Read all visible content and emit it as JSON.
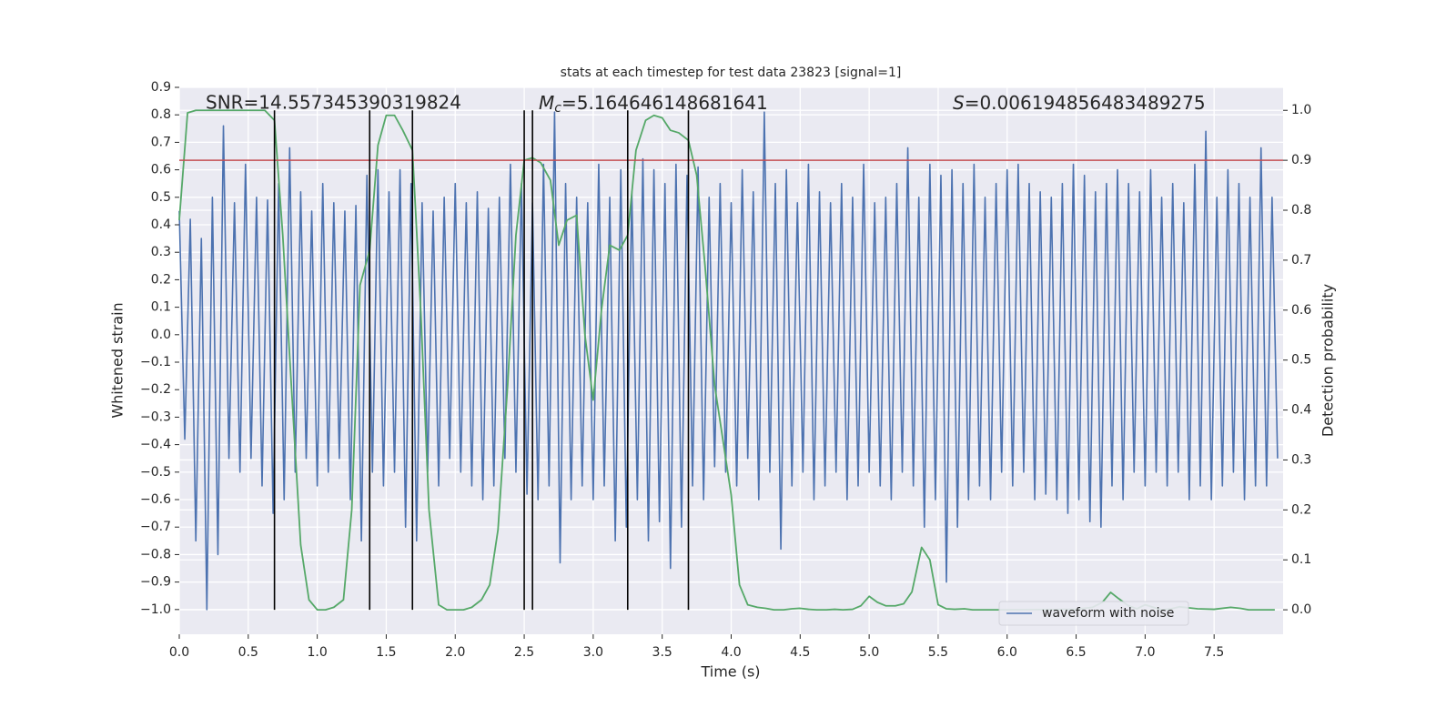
{
  "chart_data": {
    "type": "line",
    "title": "stats at each timestep for test data 23823 [signal=1]",
    "xlabel": "Time (s)",
    "ylabel": "Whitened strain",
    "y2label": "Detection probability",
    "annotations": [
      {
        "text": "SNR=14.557345390319824"
      },
      {
        "symbol": "M",
        "subscript": "c",
        "text": "=5.164646148681641"
      },
      {
        "symbol": "S",
        "text": "=0.006194856483489275"
      }
    ],
    "xlim": [
      0,
      8
    ],
    "ylim": [
      -1.09,
      0.9
    ],
    "y2lim": [
      -0.049,
      1.046
    ],
    "xticks": [
      {
        "value": 0,
        "label": "0.0"
      },
      0.5,
      {
        "value": 1,
        "label": "1.0"
      },
      1.5,
      {
        "value": 2,
        "label": "2.0"
      },
      2.5,
      {
        "value": 3,
        "label": "3.0"
      },
      3.5,
      {
        "value": 4,
        "label": "4.0"
      },
      4.5,
      {
        "value": 5,
        "label": "5.0"
      },
      5.5,
      {
        "value": 6,
        "label": "6.0"
      },
      6.5,
      {
        "value": 7,
        "label": "7.0"
      },
      7.5
    ],
    "yticks": [
      {
        "value": -1,
        "label": "−1.0"
      },
      {
        "value": -0.9,
        "label": "−0.9"
      },
      {
        "value": -0.8,
        "label": "−0.8"
      },
      {
        "value": -0.7,
        "label": "−0.7"
      },
      {
        "value": -0.6,
        "label": "−0.6"
      },
      {
        "value": -0.5,
        "label": "−0.5"
      },
      {
        "value": -0.4,
        "label": "−0.4"
      },
      {
        "value": -0.3,
        "label": "−0.3"
      },
      {
        "value": -0.2,
        "label": "−0.2"
      },
      {
        "value": -0.1,
        "label": "−0.1"
      },
      {
        "value": 0,
        "label": "0.0"
      },
      0.1,
      0.2,
      0.3,
      0.4,
      0.5,
      0.6,
      0.7,
      0.8,
      0.9
    ],
    "y2ticks": [
      {
        "value": 0,
        "label": "0.0"
      },
      0.1,
      0.2,
      0.3,
      0.4,
      0.5,
      0.6,
      0.7,
      0.8,
      0.9,
      {
        "value": 1,
        "label": "1.0"
      }
    ],
    "grid": true,
    "legend": "lower right",
    "series": [
      {
        "name": "waveform with noise",
        "color": "#4c72b0",
        "axis": "y",
        "x": [
          0,
          0.04,
          0.08,
          0.12,
          0.16,
          0.2,
          0.24,
          0.28,
          0.32,
          0.36,
          0.4,
          0.44,
          0.48,
          0.52,
          0.56,
          0.6,
          0.64,
          0.68,
          0.72,
          0.76,
          0.8,
          0.84,
          0.88,
          0.92,
          0.96,
          1,
          1.04,
          1.08,
          1.12,
          1.16,
          1.2,
          1.24,
          1.28,
          1.32,
          1.36,
          1.4,
          1.44,
          1.48,
          1.52,
          1.56,
          1.6,
          1.64,
          1.68,
          1.72,
          1.76,
          1.8,
          1.84,
          1.88,
          1.92,
          1.96,
          2,
          2.04,
          2.08,
          2.12,
          2.16,
          2.2,
          2.24,
          2.28,
          2.32,
          2.36,
          2.4,
          2.44,
          2.48,
          2.52,
          2.56,
          2.6,
          2.64,
          2.68,
          2.72,
          2.76,
          2.8,
          2.84,
          2.88,
          2.92,
          2.96,
          3,
          3.04,
          3.08,
          3.12,
          3.16,
          3.2,
          3.24,
          3.28,
          3.32,
          3.36,
          3.4,
          3.44,
          3.48,
          3.52,
          3.56,
          3.6,
          3.64,
          3.68,
          3.72,
          3.76,
          3.8,
          3.84,
          3.88,
          3.92,
          3.96,
          4,
          4.04,
          4.08,
          4.12,
          4.16,
          4.2,
          4.24,
          4.28,
          4.32,
          4.36,
          4.4,
          4.44,
          4.48,
          4.52,
          4.56,
          4.6,
          4.64,
          4.68,
          4.72,
          4.76,
          4.8,
          4.84,
          4.88,
          4.92,
          4.96,
          5,
          5.04,
          5.08,
          5.12,
          5.16,
          5.2,
          5.24,
          5.28,
          5.32,
          5.36,
          5.4,
          5.44,
          5.48,
          5.52,
          5.56,
          5.6,
          5.64,
          5.68,
          5.72,
          5.76,
          5.8,
          5.84,
          5.88,
          5.92,
          5.96,
          6,
          6.04,
          6.08,
          6.12,
          6.16,
          6.2,
          6.24,
          6.28,
          6.32,
          6.36,
          6.4,
          6.44,
          6.48,
          6.52,
          6.56,
          6.6,
          6.64,
          6.68,
          6.72,
          6.76,
          6.8,
          6.84,
          6.88,
          6.92,
          6.96,
          7,
          7.04,
          7.08,
          7.12,
          7.16,
          7.2,
          7.24,
          7.28,
          7.32,
          7.36,
          7.4,
          7.44,
          7.48,
          7.52,
          7.56,
          7.6,
          7.64,
          7.68,
          7.72,
          7.76,
          7.8,
          7.84,
          7.88,
          7.92,
          7.96
        ],
        "values": [
          0.45,
          -0.38,
          0.42,
          -0.75,
          0.35,
          -1.0,
          0.5,
          -0.8,
          0.76,
          -0.45,
          0.48,
          -0.5,
          0.62,
          -0.45,
          0.5,
          -0.55,
          0.49,
          -0.65,
          0.55,
          -0.6,
          0.68,
          -0.5,
          0.52,
          -0.45,
          0.45,
          -0.55,
          0.55,
          -0.5,
          0.48,
          -0.45,
          0.45,
          -0.6,
          0.47,
          -0.75,
          0.58,
          -0.5,
          0.6,
          -0.55,
          0.52,
          -0.5,
          0.6,
          -0.7,
          0.55,
          -0.75,
          0.48,
          -0.5,
          0.45,
          -0.55,
          0.5,
          -0.45,
          0.55,
          -0.5,
          0.48,
          -0.55,
          0.52,
          -0.6,
          0.46,
          -0.55,
          0.5,
          -0.45,
          0.62,
          -0.5,
          0.55,
          -0.58,
          0.48,
          -0.6,
          0.62,
          -0.55,
          0.81,
          -0.83,
          0.55,
          -0.6,
          0.5,
          -0.55,
          0.48,
          -0.6,
          0.62,
          -0.55,
          0.5,
          -0.75,
          0.6,
          -0.7,
          0.52,
          -0.6,
          0.64,
          -0.75,
          0.6,
          -0.68,
          0.55,
          -0.85,
          0.62,
          -0.7,
          0.58,
          -0.55,
          0.61,
          -0.6,
          0.5,
          -0.48,
          0.55,
          -0.5,
          0.48,
          -0.55,
          0.6,
          -0.45,
          0.52,
          -0.6,
          0.81,
          -0.5,
          0.55,
          -0.78,
          0.6,
          -0.55,
          0.48,
          -0.5,
          0.62,
          -0.6,
          0.52,
          -0.55,
          0.48,
          -0.5,
          0.55,
          -0.6,
          0.5,
          -0.55,
          0.62,
          -0.5,
          0.48,
          -0.55,
          0.5,
          -0.6,
          0.55,
          -0.5,
          0.68,
          -0.55,
          0.5,
          -0.7,
          0.62,
          -0.6,
          0.58,
          -0.9,
          0.6,
          -0.7,
          0.55,
          -0.6,
          0.62,
          -0.55,
          0.5,
          -0.6,
          0.55,
          -0.5,
          0.6,
          -0.55,
          0.62,
          -0.5,
          0.55,
          -0.6,
          0.52,
          -0.58,
          0.5,
          -0.6,
          0.55,
          -0.65,
          0.62,
          -0.6,
          0.58,
          -0.68,
          0.52,
          -0.7,
          0.55,
          -0.55,
          0.6,
          -0.6,
          0.55,
          -0.5,
          0.52,
          -0.55,
          0.6,
          -0.5,
          0.5,
          -0.55,
          0.55,
          -0.5,
          0.48,
          -0.6,
          0.62,
          -0.55,
          0.74,
          -0.6,
          0.5,
          -0.55,
          0.6,
          -0.5,
          0.55,
          -0.6,
          0.5,
          -0.55,
          0.68,
          -0.55,
          0.5,
          -0.45
        ]
      },
      {
        "color": "#55a868",
        "axis": "y2",
        "x": [
          0,
          0.06,
          0.12,
          0.19,
          0.25,
          0.31,
          0.38,
          0.44,
          0.5,
          0.56,
          0.62,
          0.69,
          0.75,
          0.81,
          0.88,
          0.94,
          1,
          1.06,
          1.12,
          1.19,
          1.25,
          1.31,
          1.38,
          1.44,
          1.5,
          1.56,
          1.62,
          1.69,
          1.75,
          1.81,
          1.88,
          1.94,
          2,
          2.06,
          2.12,
          2.19,
          2.25,
          2.31,
          2.38,
          2.44,
          2.5,
          2.56,
          2.62,
          2.69,
          2.75,
          2.81,
          2.88,
          2.94,
          3,
          3.06,
          3.12,
          3.19,
          3.25,
          3.31,
          3.38,
          3.44,
          3.5,
          3.56,
          3.62,
          3.69,
          3.75,
          3.81,
          3.88,
          3.94,
          4,
          4.06,
          4.12,
          4.19,
          4.25,
          4.31,
          4.38,
          4.44,
          4.5,
          4.56,
          4.62,
          4.69,
          4.75,
          4.81,
          4.88,
          4.94,
          5,
          5.06,
          5.12,
          5.19,
          5.25,
          5.31,
          5.38,
          5.44,
          5.5,
          5.56,
          5.62,
          5.69,
          5.75,
          5.81,
          6,
          6.5,
          6.62,
          6.69,
          6.75,
          6.81,
          6.88,
          6.94,
          7,
          7.06,
          7.12,
          7.19,
          7.25,
          7.31,
          7.38,
          7.5,
          7.62,
          7.69,
          7.75,
          7.94
        ],
        "values": [
          0.78,
          0.995,
          1.0,
          1.0,
          1.0,
          1.0,
          1.0,
          1.0,
          1.0,
          1.0,
          1.0,
          0.98,
          0.75,
          0.46,
          0.13,
          0.02,
          0.0,
          0.0,
          0.005,
          0.02,
          0.2,
          0.65,
          0.72,
          0.93,
          0.99,
          0.99,
          0.96,
          0.92,
          0.6,
          0.2,
          0.01,
          0.0,
          0.0,
          0.0,
          0.005,
          0.02,
          0.05,
          0.16,
          0.45,
          0.75,
          0.9,
          0.905,
          0.895,
          0.86,
          0.73,
          0.78,
          0.79,
          0.55,
          0.42,
          0.6,
          0.73,
          0.72,
          0.75,
          0.92,
          0.98,
          0.99,
          0.985,
          0.96,
          0.955,
          0.94,
          0.87,
          0.69,
          0.45,
          0.34,
          0.23,
          0.05,
          0.01,
          0.005,
          0.003,
          0.0,
          0.0,
          0.002,
          0.003,
          0.001,
          0.0,
          0.0,
          0.001,
          0.0,
          0.001,
          0.008,
          0.027,
          0.015,
          0.008,
          0.008,
          0.012,
          0.036,
          0.125,
          0.1,
          0.01,
          0.002,
          0.001,
          0.002,
          0.0,
          0.0,
          0.0,
          0.001,
          0.005,
          0.015,
          0.035,
          0.022,
          0.008,
          0.002,
          0.01,
          0.005,
          0.0,
          0.002,
          0.006,
          0.004,
          0.002,
          0.001,
          0.005,
          0.003,
          0.0,
          0.0
        ]
      }
    ],
    "hlines": [
      {
        "y": 0.9,
        "axis": "y2",
        "color": "#c44e52"
      }
    ],
    "vlines": {
      "x": [
        0.69,
        1.38,
        1.69,
        2.5,
        2.56,
        3.25,
        3.69
      ],
      "ymin": 0,
      "ymax": 1,
      "axis": "y2",
      "color": "#000000"
    }
  }
}
